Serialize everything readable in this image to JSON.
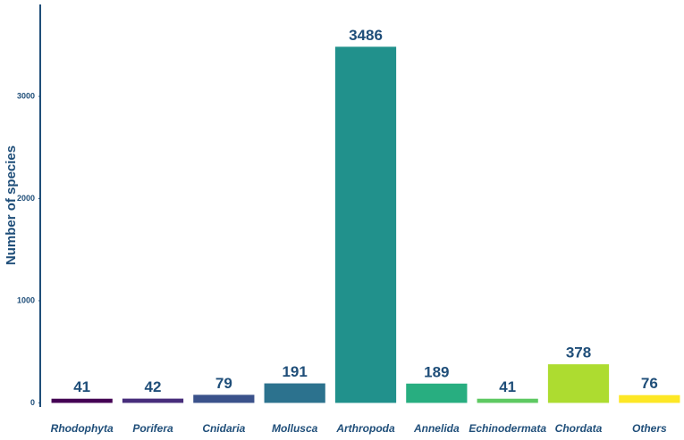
{
  "chart_data": {
    "type": "bar",
    "y_label": "Number of species",
    "categories": [
      "Rhodophyta",
      "Porifera",
      "Cnidaria",
      "Mollusca",
      "Arthropoda",
      "Annelida",
      "Echinodermata",
      "Chordata",
      "Others"
    ],
    "values": [
      41,
      42,
      79,
      191,
      3486,
      189,
      41,
      378,
      76
    ],
    "colors": [
      "#440154",
      "#472d7b",
      "#3b528b",
      "#2c728e",
      "#21918c",
      "#28ae80",
      "#5ec962",
      "#addc30",
      "#fde725"
    ],
    "ylim": [
      -40,
      3900
    ],
    "yticks": [
      0,
      1000,
      2000,
      3000
    ],
    "grid": false
  }
}
